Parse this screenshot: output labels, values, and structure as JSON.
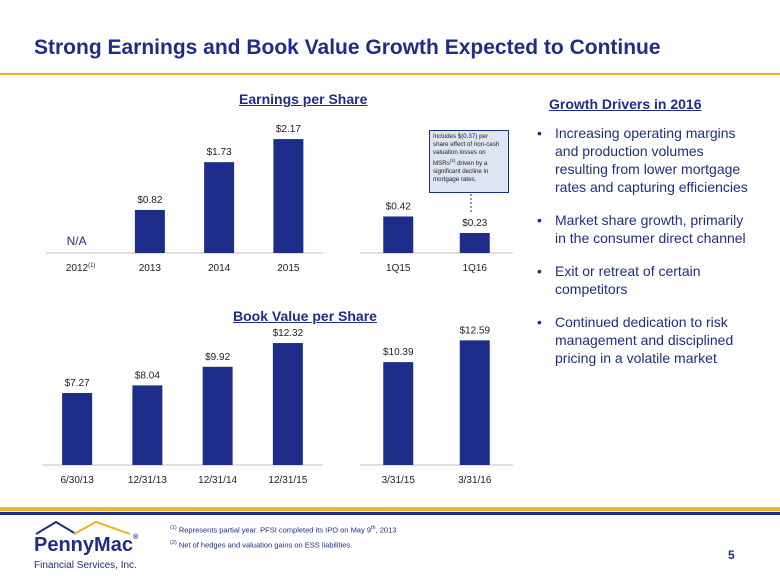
{
  "title": "Strong Earnings and Book Value Growth Expected to Continue",
  "colors": {
    "bar": "#1f2d8a",
    "title": "#1f2d8a",
    "accent_gold": "#f0b323",
    "axis": "#bfbfbf"
  },
  "eps": {
    "title": "Earnings per Share",
    "annual": {
      "categories": [
        "2012",
        "2013",
        "2014",
        "2015"
      ],
      "labels": [
        "N/A",
        "$0.82",
        "$1.73",
        "$2.17"
      ],
      "first_cat_sup": "(1)"
    },
    "quarterly": {
      "categories": [
        "1Q15",
        "1Q16"
      ],
      "labels": [
        "$0.42",
        "$0.23"
      ]
    },
    "callout": {
      "text": "Includes $(0.37) per share effect of non-cash valuation losses on MSRs",
      "sup": "(2)",
      "text2": " driven by a significant decline in mortgage rates."
    }
  },
  "bvps": {
    "title": "Book Value per Share",
    "annual": {
      "categories": [
        "6/30/13",
        "12/31/13",
        "12/31/14",
        "12/31/15"
      ],
      "labels": [
        "$7.27",
        "$8.04",
        "$9.92",
        "$12.32"
      ]
    },
    "quarterly": {
      "categories": [
        "3/31/15",
        "3/31/16"
      ],
      "labels": [
        "$10.39",
        "$12.59"
      ]
    }
  },
  "chart_data": [
    {
      "type": "bar",
      "title": "Earnings per Share",
      "categories": [
        "2012",
        "2013",
        "2014",
        "2015"
      ],
      "values": [
        null,
        0.82,
        1.73,
        2.17
      ]
    },
    {
      "type": "bar",
      "title": "Earnings per Share",
      "categories": [
        "1Q15",
        "1Q16"
      ],
      "values": [
        0.42,
        0.23
      ]
    },
    {
      "type": "bar",
      "title": "Book Value per Share",
      "categories": [
        "6/30/13",
        "12/31/13",
        "12/31/14",
        "12/31/15"
      ],
      "values": [
        7.27,
        8.04,
        9.92,
        12.32
      ]
    },
    {
      "type": "bar",
      "title": "Book Value per Share",
      "categories": [
        "3/31/15",
        "3/31/16"
      ],
      "values": [
        10.39,
        12.59
      ]
    }
  ],
  "drivers": {
    "title": "Growth Drivers in 2016",
    "bullet": "•",
    "items": [
      "Increasing operating margins and production volumes resulting from lower mortgage rates and capturing efficiencies",
      "Market share growth, primarily in the consumer direct channel",
      "Exit or retreat of certain competitors",
      "Continued dedication to risk management and disciplined pricing in a volatile market"
    ]
  },
  "footnotes": {
    "f1_sup": "(1)",
    "f1_a": " Represents partial year. PFSI completed its IPO on May 9",
    "f1_th": "th",
    "f1_b": ", 2013",
    "f2_sup": "(2)",
    "f2": " Net of hedges and valuation gains on ESS liabilities."
  },
  "logo": {
    "name_a": "Penny",
    "name_b": "Mac",
    "reg": "®",
    "sub": "Financial Services, Inc."
  },
  "page_number": "5"
}
